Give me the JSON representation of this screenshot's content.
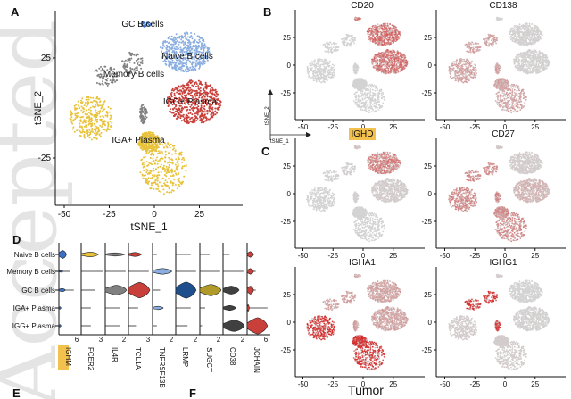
{
  "watermark": "Accepted Article",
  "panels": {
    "A": "A",
    "B": "B",
    "C": "C",
    "D": "D",
    "E": "E",
    "F": "F"
  },
  "footer_label": "Tumor",
  "orientation_axes": {
    "x": "tSNE_1",
    "y": "tSNE_2"
  },
  "chart_data": [
    {
      "type": "scatter",
      "panel": "A",
      "xlabel": "tSNE_1",
      "ylabel": "tSNE_2",
      "xticks": [
        -50,
        -25,
        0,
        25
      ],
      "yticks": [
        25,
        -25
      ],
      "xlim": [
        -55,
        45
      ],
      "ylim": [
        -47,
        48
      ],
      "clusters": [
        {
          "name": "GC B cells",
          "color": "#3a6fc4",
          "blobs": [
            [
              -5,
              42,
              3,
              1.5
            ]
          ],
          "n": 25
        },
        {
          "name": "Naive B cells",
          "color": "#8aaee0",
          "blobs": [
            [
              17,
              28,
              14,
              10
            ]
          ],
          "n": 500
        },
        {
          "name": "Memory B cells",
          "color": "#c9403a",
          "blobs": [
            [
              22,
              3,
              15,
              11
            ]
          ],
          "n": 560
        },
        {
          "name": "IGG+ Plasma",
          "color": "#808080",
          "blobs": [
            [
              -12,
              22,
              6,
              6
            ],
            [
              -27,
              16,
              7,
              5
            ],
            [
              -6,
              -3,
              2,
              5
            ]
          ],
          "n": 220
        },
        {
          "name": "IGA+ Plasma",
          "color": "#e8c23a",
          "blobs": [
            [
              -35,
              -5,
              12,
              11
            ],
            [
              5,
              -30,
              13,
              13
            ],
            [
              -3,
              -17,
              6,
              5
            ]
          ],
          "n": 900
        }
      ]
    },
    {
      "type": "scatter",
      "panel": "B-C",
      "description_none": "",
      "xticks": [
        -50,
        -25,
        0,
        25
      ],
      "yticks": [
        25,
        0,
        -25
      ],
      "low_color": "#d3d3d3",
      "high_color": "#d42a2a",
      "cluster_order": [
        "GC B cells",
        "Naive B cells",
        "Memory B cells",
        "IGG+ Plasma",
        "IGA+ Plasma"
      ],
      "features": [
        {
          "gene": "CD20",
          "highlight": false,
          "expression": [
            0.6,
            0.6,
            0.6,
            0.0,
            0.0
          ]
        },
        {
          "gene": "CD138",
          "highlight": false,
          "expression": [
            0.0,
            0.02,
            0.02,
            0.3,
            0.3
          ]
        },
        {
          "gene": "IGHD",
          "highlight": true,
          "expression": [
            0.1,
            0.5,
            0.05,
            0.02,
            0.0
          ]
        },
        {
          "gene": "CD27",
          "highlight": false,
          "expression": [
            0.1,
            0.05,
            0.2,
            0.45,
            0.45
          ]
        },
        {
          "gene": "IGHA1",
          "highlight": false,
          "expression": [
            0.3,
            0.3,
            0.3,
            0.3,
            0.95
          ]
        },
        {
          "gene": "IGHG1",
          "highlight": false,
          "expression": [
            0.05,
            0.0,
            0.02,
            0.95,
            0.05
          ]
        }
      ]
    },
    {
      "type": "violin",
      "panel": "D",
      "cell_types": [
        "Naive B cells",
        "Memory B cells",
        "GC B cells",
        "IGA+ Plasma",
        "IGG+ Plasma"
      ],
      "genes": [
        {
          "gene": "IGHM",
          "highlight": true,
          "max_tick": "6",
          "color": "#3a6fc4",
          "violins": [
            [
              0.5,
              0.35,
              0.35
            ],
            [
              0.1,
              0.2,
              0.5
            ],
            [
              0.2,
              0.3,
              0.7
            ],
            [
              0.15,
              0.1,
              0.1
            ],
            [
              0.15,
              0.1,
              0.1
            ]
          ]
        },
        {
          "gene": "FCER2",
          "highlight": false,
          "max_tick": "3",
          "color": "#e8c23a",
          "violins": [
            [
              0.3,
              0.8,
              0.8
            ],
            [
              0.02,
              0.02,
              1.0
            ],
            [
              0.02,
              0.02,
              0.65
            ],
            [
              0.02,
              0.02,
              0.45
            ],
            [
              0.02,
              0.02,
              0.45
            ]
          ]
        },
        {
          "gene": "IL4R",
          "highlight": false,
          "max_tick": "2",
          "color": "#808080",
          "violins": [
            [
              0.2,
              0.9,
              0.9
            ],
            [
              0.02,
              0.02,
              0.95
            ],
            [
              0.6,
              1.0,
              1.0
            ],
            [
              0.02,
              0.02,
              0.7
            ],
            [
              0.02,
              0.02,
              0.7
            ]
          ]
        },
        {
          "gene": "TCL1A",
          "highlight": false,
          "max_tick": "3",
          "color": "#c9403a",
          "violins": [
            [
              0.25,
              0.6,
              0.6
            ],
            [
              0.02,
              0.02,
              0.95
            ],
            [
              0.95,
              1.0,
              1.0
            ],
            [
              0.02,
              0.02,
              0.45
            ],
            [
              0.02,
              0.02,
              0.35
            ]
          ]
        },
        {
          "gene": "TNFRSF13B",
          "highlight": false,
          "max_tick": "2",
          "color": "#8aaee0",
          "violins": [
            [
              0.02,
              0.02,
              0.2
            ],
            [
              0.35,
              0.9,
              0.9
            ],
            [
              0.02,
              0.02,
              0.35
            ],
            [
              0.2,
              0.5,
              0.5
            ],
            [
              0.02,
              0.02,
              0.2
            ]
          ]
        },
        {
          "gene": "LRMP",
          "highlight": false,
          "max_tick": "2",
          "color": "#1f4e8c",
          "violins": [
            [
              0.02,
              0.02,
              0.7
            ],
            [
              0.02,
              0.02,
              0.95
            ],
            [
              1.0,
              0.95,
              0.95
            ],
            [
              0.02,
              0.02,
              0.7
            ],
            [
              0.02,
              0.02,
              0.55
            ]
          ]
        },
        {
          "gene": "SUGCT",
          "highlight": false,
          "max_tick": "2",
          "color": "#b09a2a",
          "violins": [
            [
              0.02,
              0.02,
              0.45
            ],
            [
              0.02,
              0.02,
              0.95
            ],
            [
              0.7,
              1.0,
              1.0
            ],
            [
              0.02,
              0.02,
              0.25
            ],
            [
              0.02,
              0.02,
              0.1
            ]
          ]
        },
        {
          "gene": "CD38",
          "highlight": false,
          "max_tick": "2",
          "color": "#404040",
          "violins": [
            [
              0.02,
              0.02,
              0.3
            ],
            [
              0.02,
              0.02,
              0.95
            ],
            [
              0.5,
              0.75,
              0.75
            ],
            [
              0.3,
              0.6,
              0.6
            ],
            [
              0.7,
              1.0,
              1.0
            ]
          ]
        },
        {
          "gene": "JCHAIN",
          "highlight": false,
          "max_tick": "6",
          "color": "#c9403a",
          "violins": [
            [
              0.35,
              0.3,
              0.3
            ],
            [
              0.35,
              0.3,
              0.4
            ],
            [
              0.5,
              0.3,
              0.4
            ],
            [
              0.4,
              0.1,
              0.95
            ],
            [
              1.0,
              0.95,
              0.95
            ]
          ]
        }
      ],
      "cell_type_labels_shown": [
        "Naive B cells",
        "Memory B cells",
        "GC B cells",
        "IGA+ Plasma",
        "IGG+ Plasma"
      ]
    }
  ]
}
